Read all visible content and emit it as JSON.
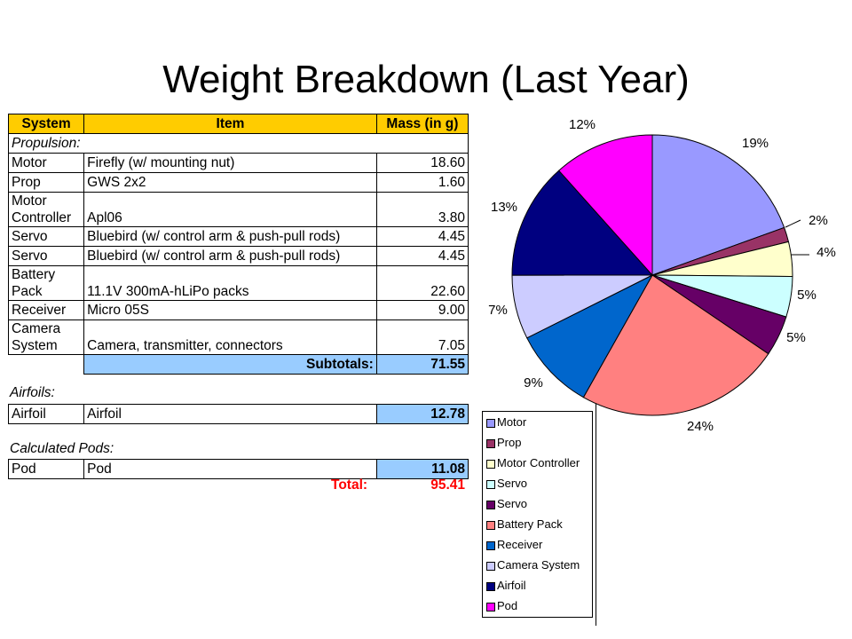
{
  "title": "Weight Breakdown (Last Year)",
  "table": {
    "headers": [
      "System",
      "Item",
      "Mass (in g)"
    ],
    "propulsion_label": "Propulsion:",
    "rows": [
      {
        "system": "Motor",
        "system2": "",
        "item": "Firefly (w/ mounting nut)",
        "mass": "18.60"
      },
      {
        "system": "Prop",
        "system2": "",
        "item": "GWS 2x2",
        "mass": "1.60"
      },
      {
        "system": "Motor",
        "system2": "Controller",
        "item": "Apl06",
        "mass": "3.80"
      },
      {
        "system": "Servo",
        "system2": "",
        "item": "Bluebird (w/ control arm & push-pull rods)",
        "mass": "4.45"
      },
      {
        "system": "Servo",
        "system2": "",
        "item": "Bluebird (w/ control arm & push-pull rods)",
        "mass": "4.45"
      },
      {
        "system": "Battery",
        "system2": "Pack",
        "item": "11.1V 300mA-hLiPo packs",
        "mass": "22.60"
      },
      {
        "system": "Receiver",
        "system2": "",
        "item": "Micro 05S",
        "mass": "9.00"
      },
      {
        "system": "Camera",
        "system2": "System",
        "item": "Camera, transmitter, connectors",
        "mass": "7.05"
      }
    ],
    "subtotal_label": "Subtotals:",
    "subtotal_value": "71.55",
    "airfoils_label": "Airfoils:",
    "airfoil_row": {
      "system": "Airfoil",
      "item": "Airfoil",
      "mass": "12.78"
    },
    "pods_label": "Calculated Pods:",
    "pod_row": {
      "system": "Pod",
      "item": "Pod",
      "mass": "11.08"
    },
    "total_label": "Total:",
    "total_value": "95.41"
  },
  "chart_data": {
    "type": "pie",
    "categories": [
      "Motor",
      "Prop",
      "Motor Controller",
      "Servo",
      "Servo",
      "Battery Pack",
      "Receiver",
      "Camera System",
      "Airfoil",
      "Pod"
    ],
    "values": [
      18.6,
      1.6,
      3.8,
      4.45,
      4.45,
      22.6,
      9.0,
      7.05,
      12.78,
      11.08
    ],
    "labels": [
      "19%",
      "2%",
      "4%",
      "5%",
      "5%",
      "24%",
      "9%",
      "7%",
      "13%",
      "12%"
    ],
    "colors": [
      "#9999ff",
      "#993366",
      "#ffffcc",
      "#ccffff",
      "#660066",
      "#ff8080",
      "#0066cc",
      "#ccccff",
      "#000080",
      "#ff00ff"
    ],
    "legend": "right-bottom"
  }
}
